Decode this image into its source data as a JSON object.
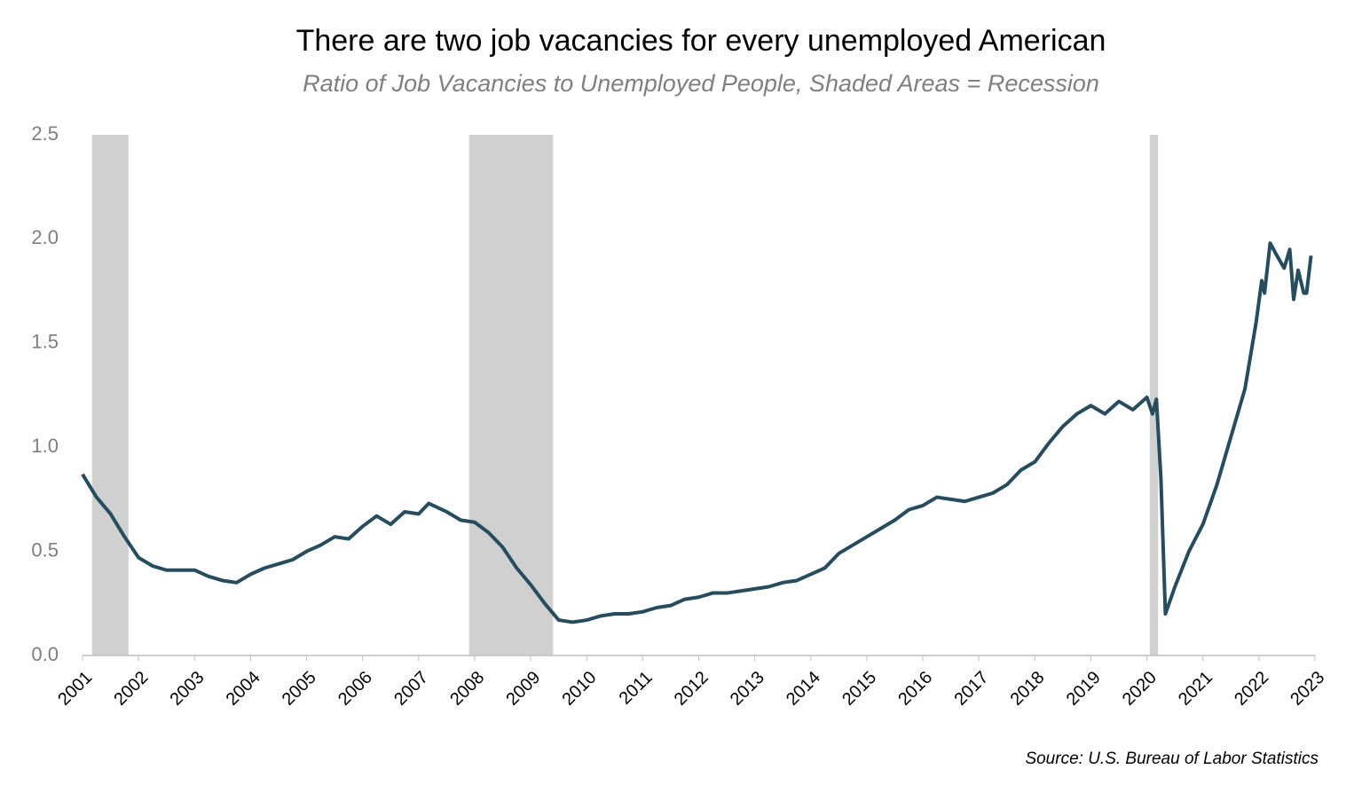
{
  "chart_data": {
    "type": "line",
    "title": "There are two job vacancies for every unemployed American",
    "subtitle": "Ratio of Job Vacancies to Unemployed People, Shaded Areas = Recession",
    "source": "Source: U.S. Bureau of Labor Statistics",
    "recessions": [
      [
        2001.17,
        2001.82
      ],
      [
        2007.9,
        2009.4
      ],
      [
        2020.05,
        2020.2
      ]
    ],
    "recession_color": "#d0d0d0",
    "xlim": [
      2001,
      2023
    ],
    "xticks": [
      2001,
      2002,
      2003,
      2004,
      2005,
      2006,
      2007,
      2008,
      2009,
      2010,
      2011,
      2012,
      2013,
      2014,
      2015,
      2016,
      2017,
      2018,
      2019,
      2020,
      2021,
      2022,
      2023
    ],
    "ylim": [
      0,
      2.5
    ],
    "yticks": [
      {
        "value": 0,
        "label": "0.0"
      },
      0.5,
      {
        "value": 1,
        "label": "1.0"
      },
      1.5,
      {
        "value": 2,
        "label": "2.0"
      },
      2.5
    ],
    "grid": false,
    "series": [
      {
        "name": "Ratio of Job Vacancies to Unemployed People",
        "color": "#264c5e",
        "x": [
          2001.0,
          2001.25,
          2001.5,
          2001.75,
          2002.0,
          2002.25,
          2002.5,
          2002.75,
          2003.0,
          2003.25,
          2003.5,
          2003.75,
          2004.0,
          2004.25,
          2004.5,
          2004.75,
          2005.0,
          2005.25,
          2005.5,
          2005.75,
          2006.0,
          2006.25,
          2006.5,
          2006.75,
          2007.0,
          2007.18,
          2007.5,
          2007.75,
          2008.0,
          2008.25,
          2008.5,
          2008.75,
          2009.0,
          2009.25,
          2009.5,
          2009.75,
          2010.0,
          2010.25,
          2010.5,
          2010.75,
          2011.0,
          2011.25,
          2011.5,
          2011.75,
          2012.0,
          2012.25,
          2012.5,
          2012.75,
          2013.0,
          2013.25,
          2013.5,
          2013.75,
          2014.0,
          2014.25,
          2014.5,
          2014.75,
          2015.0,
          2015.25,
          2015.5,
          2015.75,
          2016.0,
          2016.25,
          2016.5,
          2016.75,
          2017.0,
          2017.25,
          2017.5,
          2017.75,
          2018.0,
          2018.25,
          2018.5,
          2018.75,
          2019.0,
          2019.25,
          2019.5,
          2019.75,
          2020.0,
          2020.1,
          2020.17,
          2020.25,
          2020.33,
          2020.5,
          2020.75,
          2021.0,
          2021.25,
          2021.5,
          2021.75,
          2021.95,
          2022.05,
          2022.1,
          2022.2,
          2022.3,
          2022.45,
          2022.55,
          2022.62,
          2022.7,
          2022.8,
          2022.85,
          2022.93
        ],
        "values": [
          0.87,
          0.76,
          0.68,
          0.57,
          0.47,
          0.43,
          0.41,
          0.41,
          0.41,
          0.38,
          0.36,
          0.35,
          0.39,
          0.42,
          0.44,
          0.46,
          0.5,
          0.53,
          0.57,
          0.56,
          0.62,
          0.67,
          0.63,
          0.69,
          0.68,
          0.73,
          0.69,
          0.65,
          0.64,
          0.59,
          0.52,
          0.42,
          0.34,
          0.25,
          0.17,
          0.16,
          0.17,
          0.19,
          0.2,
          0.2,
          0.21,
          0.23,
          0.24,
          0.27,
          0.28,
          0.3,
          0.3,
          0.31,
          0.32,
          0.33,
          0.35,
          0.36,
          0.39,
          0.42,
          0.49,
          0.53,
          0.57,
          0.61,
          0.65,
          0.7,
          0.72,
          0.76,
          0.75,
          0.74,
          0.76,
          0.78,
          0.82,
          0.89,
          0.93,
          1.02,
          1.1,
          1.16,
          1.2,
          1.16,
          1.22,
          1.18,
          1.24,
          1.16,
          1.23,
          0.85,
          0.2,
          0.33,
          0.5,
          0.63,
          0.82,
          1.05,
          1.28,
          1.6,
          1.8,
          1.74,
          1.98,
          1.93,
          1.86,
          1.95,
          1.71,
          1.85,
          1.74,
          1.74,
          1.92
        ]
      }
    ]
  }
}
